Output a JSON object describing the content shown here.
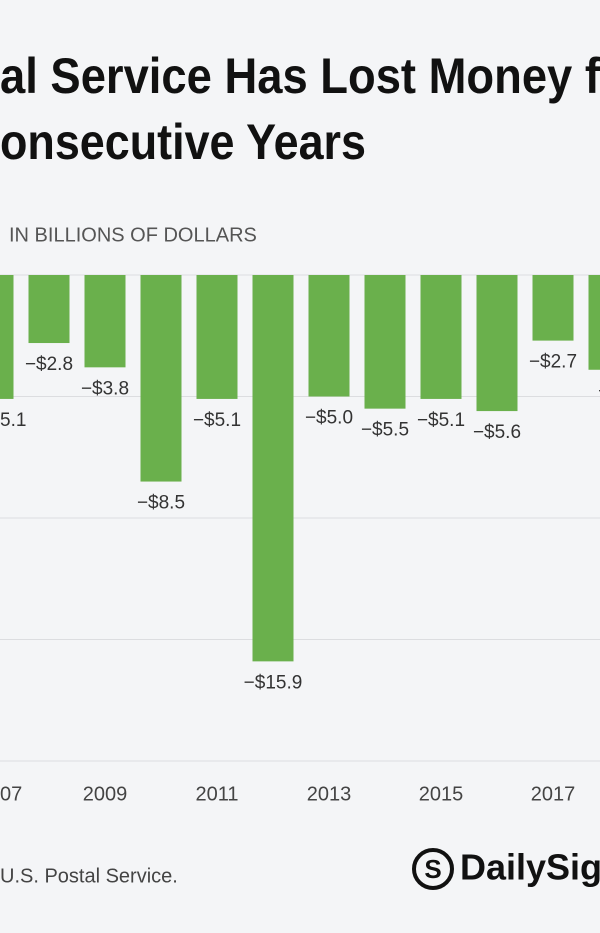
{
  "chart_data": {
    "type": "bar",
    "title_lines": [
      "al Service Has Lost Money f",
      "onsecutive Years"
    ],
    "subtitle": "IN BILLIONS OF DOLLARS",
    "source": "U.S. Postal Service.",
    "logo": "DailySign",
    "categories": [
      "07",
      null,
      "2009",
      null,
      "2011",
      null,
      "2013",
      null,
      "2015",
      null,
      "2017",
      null
    ],
    "values": [
      -5.1,
      -2.8,
      -3.8,
      -8.5,
      -5.1,
      -15.9,
      -5.0,
      -5.5,
      -5.1,
      -5.6,
      -2.7,
      -3.9
    ],
    "value_labels": [
      "5.1",
      "−$2.8",
      "−$3.8",
      "−$8.5",
      "−$5.1",
      "−$15.9",
      "−$5.0",
      "−$5.5",
      "−$5.1",
      "−$5.6",
      "−$2.7",
      "−$"
    ],
    "color": "#6ab04c",
    "ylim": [
      -20,
      0
    ],
    "yticks": [
      -20,
      -15,
      -10,
      -5,
      0
    ],
    "grid": true
  }
}
